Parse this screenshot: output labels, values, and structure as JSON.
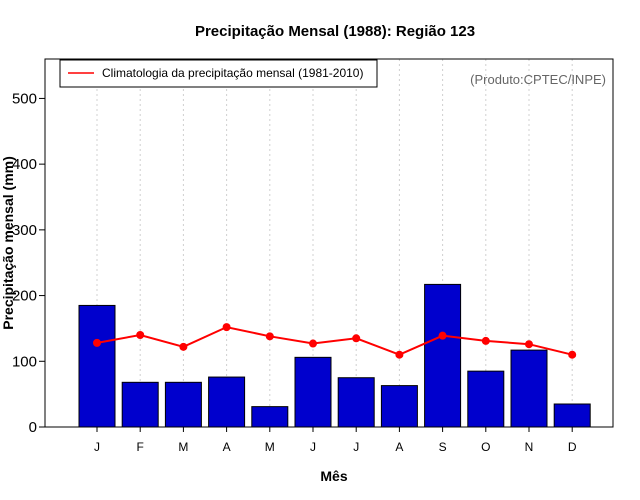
{
  "chart_data": {
    "type": "bar",
    "title": "Precipitação Mensal (1988): Região 123",
    "xlabel": "Mês",
    "ylabel": "Precipitação mensal (mm)",
    "ylim": [
      0,
      560
    ],
    "yticks": [
      0,
      100,
      200,
      300,
      400,
      500
    ],
    "categories": [
      "J",
      "F",
      "M",
      "A",
      "M",
      "J",
      "J",
      "A",
      "S",
      "O",
      "N",
      "D"
    ],
    "series": [
      {
        "name": "Precipitação mensal (1988)",
        "type": "bar",
        "color": "#0000CD",
        "values": [
          185,
          68,
          68,
          76,
          31,
          106,
          75,
          63,
          217,
          85,
          117,
          35
        ]
      },
      {
        "name": "Climatologia da precipitação mensal (1981-2010)",
        "type": "line",
        "color": "#FF0000",
        "values": [
          128,
          140,
          122,
          152,
          138,
          127,
          135,
          110,
          139,
          131,
          126,
          110
        ]
      }
    ],
    "legend": {
      "position": "top-left",
      "label": "Climatologia da precipitação mensal (1981-2010)"
    },
    "credit": "(Produto:CPTEC/INPE)",
    "grid": "vertical dotted"
  }
}
